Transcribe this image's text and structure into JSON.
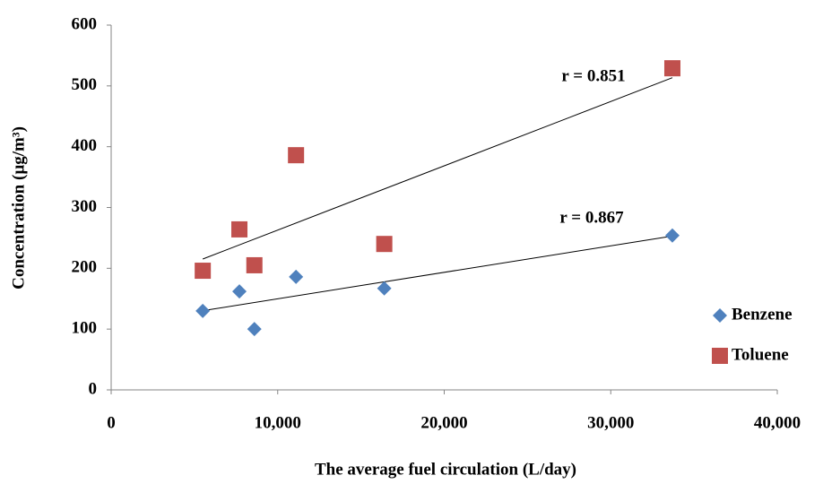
{
  "chart_data": {
    "type": "scatter",
    "xlabel": "The average fuel circulation (L/day)",
    "ylabel": "Concentration (µg/m³)",
    "xlim": [
      0,
      40000
    ],
    "xticks": [
      0,
      {
        "value": 10000,
        "label": "10,000"
      },
      {
        "value": 20000,
        "label": "20,000"
      },
      {
        "value": 30000,
        "label": "30,000"
      },
      {
        "value": 40000,
        "label": "40,000"
      }
    ],
    "ylim": [
      0,
      600
    ],
    "yticks": [
      0,
      100,
      200,
      300,
      400,
      500,
      600
    ],
    "grid": false,
    "legend": "right",
    "trendline": true,
    "series": [
      {
        "name": "Benzene",
        "color": "#4f81bd",
        "marker": "diamond",
        "x": [
          5500,
          7700,
          8600,
          11100,
          16400,
          33700
        ],
        "values": [
          130,
          162,
          100,
          186,
          167,
          254
        ],
        "annotation": "r = 0.867"
      },
      {
        "name": "Toluene",
        "color": "#c0504d",
        "marker": "square",
        "x": [
          5500,
          7700,
          8600,
          11100,
          16400,
          33700
        ],
        "values": [
          196,
          264,
          205,
          386,
          240,
          529
        ],
        "annotation": "r = 0.851"
      }
    ]
  }
}
